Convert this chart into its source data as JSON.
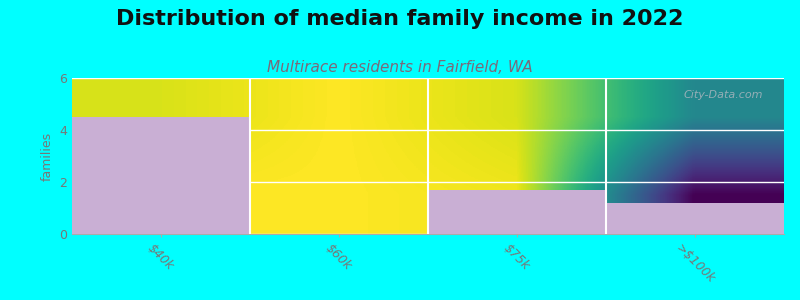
{
  "title": "Distribution of median family income in 2022",
  "subtitle": "Multirace residents in Fairfield, WA",
  "categories": [
    "$40k",
    "$60k",
    "$75k",
    ">$100k"
  ],
  "values": [
    4.5,
    0,
    1.7,
    1.2
  ],
  "bar_color": "#c9afd4",
  "background_color": "#00ffff",
  "plot_bg_color_top": "#e8f5e8",
  "plot_bg_color_bottom": "#f5f5f0",
  "ylabel": "families",
  "ylim": [
    0,
    6
  ],
  "yticks": [
    0,
    2,
    4,
    6
  ],
  "title_fontsize": 16,
  "subtitle_fontsize": 11,
  "subtitle_color": "#7a6a7a",
  "tick_color": "#777777",
  "watermark": "City-Data.com",
  "title_color": "#111111"
}
